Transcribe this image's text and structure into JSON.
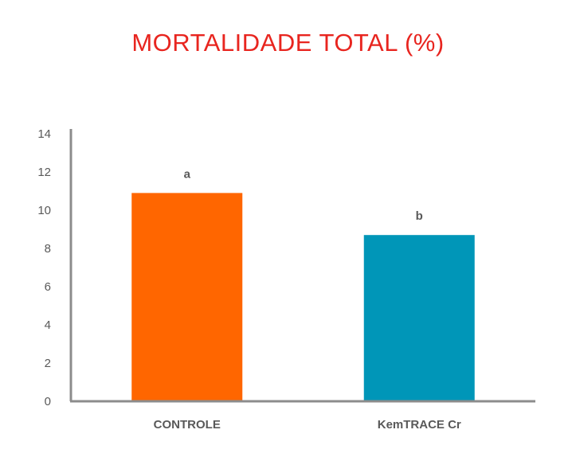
{
  "chart_data": {
    "type": "bar",
    "title": "MORTALIDADE TOTAL (%)",
    "title_color": "#E8251F",
    "categories": [
      "CONTROLE",
      "KemTRACE Cr"
    ],
    "values": [
      10.9,
      8.7
    ],
    "data_labels": [
      "a",
      "b"
    ],
    "bar_colors": [
      "#FF6600",
      "#0096B8"
    ],
    "axis_color": "#8C8C8C",
    "ylim": [
      0,
      14
    ],
    "yticks": [
      "0",
      "2",
      "4",
      "6",
      "8",
      "10",
      "12",
      "14"
    ],
    "grid": false,
    "legend": "none",
    "xlabel": "",
    "ylabel": ""
  }
}
